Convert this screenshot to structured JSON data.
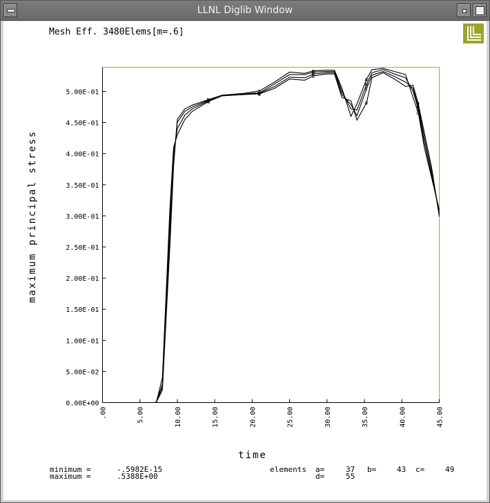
{
  "window": {
    "title": "LLNL Diglib Window",
    "logo": "llnl-logo",
    "logo_color": "#9ba527"
  },
  "chart_data": {
    "type": "line",
    "title": "Mesh Eff. 3480Elems[m=.6]",
    "xlabel": "time",
    "ylabel": "maximum principal stress",
    "xlim": [
      0,
      45
    ],
    "ylim": [
      0,
      0.5388
    ],
    "x_ticks": [
      ".00",
      "5.00",
      "10.00",
      "15.00",
      "20.00",
      "25.00",
      "30.00",
      "35.00",
      "40.00",
      "45.00"
    ],
    "y_ticks": [
      "0.00E+00",
      "5.00E-02",
      "1.00E-01",
      "1.50E-01",
      "2.00E-01",
      "2.50E-01",
      "3.00E-01",
      "3.50E-01",
      "4.00E-01",
      "4.50E-01",
      "5.00E-01"
    ],
    "frame_color": "#b5a822",
    "line_color": "#000000",
    "series": [
      {
        "name": "a",
        "marker": "a",
        "x": [
          0,
          7,
          7.2,
          8,
          9,
          9.5,
          10,
          11,
          12,
          14.2,
          16,
          19,
          21,
          23,
          25,
          27,
          28.2,
          30,
          31,
          32,
          33.2,
          34,
          35.3,
          36,
          37.5,
          39,
          40.5,
          41.5,
          42.2,
          43,
          44,
          45
        ],
        "y": [
          0,
          0,
          0.001,
          0.02,
          0.25,
          0.38,
          0.455,
          0.472,
          0.478,
          0.487,
          0.494,
          0.497,
          0.501,
          0.515,
          0.531,
          0.529,
          0.533,
          0.534,
          0.534,
          0.505,
          0.46,
          0.48,
          0.52,
          0.535,
          0.537,
          0.532,
          0.527,
          0.49,
          0.466,
          0.41,
          0.36,
          0.31
        ]
      },
      {
        "name": "b",
        "marker": "b",
        "x": [
          0,
          7,
          7.2,
          8,
          9,
          9.5,
          10,
          11,
          12,
          14.2,
          16,
          19,
          21,
          23,
          25,
          27,
          28.2,
          30,
          31,
          32,
          33.2,
          34,
          35.3,
          36,
          37.5,
          39,
          40.5,
          41.5,
          42.2,
          43,
          44,
          45
        ],
        "y": [
          0,
          0,
          0.001,
          0.025,
          0.27,
          0.39,
          0.45,
          0.468,
          0.475,
          0.486,
          0.494,
          0.496,
          0.498,
          0.512,
          0.527,
          0.527,
          0.531,
          0.532,
          0.532,
          0.5,
          0.472,
          0.47,
          0.512,
          0.53,
          0.535,
          0.528,
          0.522,
          0.5,
          0.472,
          0.418,
          0.364,
          0.305
        ]
      },
      {
        "name": "c",
        "marker": "c",
        "x": [
          0,
          7,
          7.2,
          8,
          9,
          9.5,
          10,
          11,
          12,
          14.2,
          16,
          19,
          21,
          23,
          25,
          27,
          28.2,
          30,
          31,
          32,
          33.2,
          34,
          35.3,
          36,
          37.5,
          39,
          40.5,
          41.5,
          42.2,
          43,
          44,
          45
        ],
        "y": [
          0,
          0,
          0.001,
          0.03,
          0.29,
          0.4,
          0.44,
          0.462,
          0.472,
          0.485,
          0.493,
          0.495,
          0.497,
          0.508,
          0.523,
          0.522,
          0.528,
          0.53,
          0.53,
          0.495,
          0.479,
          0.461,
          0.505,
          0.526,
          0.532,
          0.524,
          0.515,
          0.505,
          0.476,
          0.426,
          0.37,
          0.302
        ]
      },
      {
        "name": "d",
        "marker": "d",
        "x": [
          0,
          7,
          7.2,
          8,
          9,
          9.5,
          10,
          11,
          12,
          14.2,
          16,
          19,
          21,
          23,
          25,
          27,
          28.2,
          30,
          31,
          32,
          33.2,
          34,
          35.3,
          36,
          37.5,
          39,
          40.5,
          41.5,
          42.2,
          43,
          44,
          45
        ],
        "y": [
          0,
          0,
          0.001,
          0.04,
          0.31,
          0.41,
          0.43,
          0.455,
          0.468,
          0.484,
          0.493,
          0.495,
          0.496,
          0.505,
          0.52,
          0.518,
          0.525,
          0.528,
          0.528,
          0.49,
          0.485,
          0.454,
          0.482,
          0.522,
          0.53,
          0.52,
          0.508,
          0.51,
          0.48,
          0.434,
          0.376,
          0.299
        ]
      }
    ]
  },
  "footer": {
    "minimum_label": "minimum =",
    "minimum_value": "-.5982E-15",
    "maximum_label": "maximum =",
    "maximum_value": ".5388E+00",
    "elements_label": "elements",
    "a_label": "a=",
    "a_value": "37",
    "b_label": "b=",
    "b_value": "43",
    "c_label": "c=",
    "c_value": "49",
    "d_label": "d=",
    "d_value": "55"
  }
}
